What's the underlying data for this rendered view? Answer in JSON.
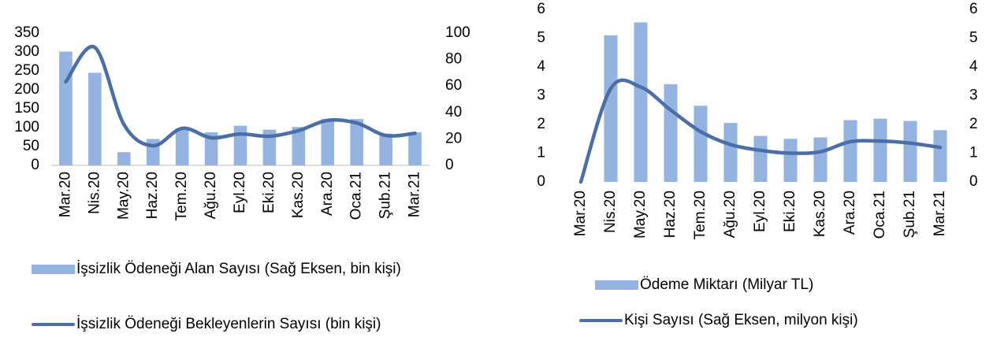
{
  "chart_data": [
    {
      "type": "bar-line",
      "categories": [
        "Mar.20",
        "Nis.20",
        "May.20",
        "Haz.20",
        "Tem.20",
        "Ağu.20",
        "Eyl.20",
        "Eki.20",
        "Kas.20",
        "Ara.20",
        "Oca.21",
        "Şub.21",
        "Mar.21"
      ],
      "series": [
        {
          "name": "İşsizlik Ödeneği Alan Sayısı (Sağ Eksen, bin kişi)",
          "type": "bar",
          "axis": "y2",
          "color": "#95b3e0",
          "values": [
            86,
            70,
            10,
            20,
            28,
            25,
            30,
            27,
            29,
            35,
            35,
            24,
            25
          ]
        },
        {
          "name": "İşsizlik Ödeneği Bekleyenlerin Sayısı (bin kişi)",
          "type": "line",
          "axis": "y",
          "color": "#4a6fa8",
          "values": [
            221,
            312,
            108,
            52,
            98,
            73,
            83,
            77,
            92,
            119,
            112,
            79,
            85
          ]
        }
      ],
      "ylim": [
        0,
        350
      ],
      "yticks": [
        0,
        50,
        100,
        150,
        200,
        250,
        300,
        350
      ],
      "y2lim": [
        0,
        100
      ],
      "y2ticks": [
        0,
        20,
        40,
        60,
        80,
        100
      ],
      "legend": "bottom"
    },
    {
      "type": "bar-line",
      "categories": [
        "Mar.20",
        "Nis.20",
        "May.20",
        "Haz.20",
        "Tem.20",
        "Ağu.20",
        "Eyl.20",
        "Eki.20",
        "Kas.20",
        "Ara.20",
        "Oca.21",
        "Şub.21",
        "Mar.21"
      ],
      "series": [
        {
          "name": "Ödeme Miktarı (Milyar TL)",
          "type": "bar",
          "axis": "y",
          "color": "#95b3e0",
          "values": [
            0,
            5.1,
            5.55,
            3.4,
            2.65,
            2.05,
            1.6,
            1.5,
            1.55,
            2.15,
            2.2,
            2.12,
            1.8
          ]
        },
        {
          "name": "Kişi Sayısı (Sağ Eksen, milyon kişi)",
          "type": "line",
          "axis": "y2",
          "color": "#4a6fa8",
          "values": [
            0,
            3.25,
            3.3,
            2.5,
            1.75,
            1.3,
            1.1,
            1.0,
            1.05,
            1.4,
            1.42,
            1.35,
            1.2
          ]
        }
      ],
      "ylim": [
        0,
        6
      ],
      "yticks": [
        0,
        1,
        2,
        3,
        4,
        5,
        6
      ],
      "y2lim": [
        0,
        6
      ],
      "y2ticks": [
        0,
        1,
        2,
        3,
        4,
        5,
        6
      ],
      "legend": "bottom"
    }
  ]
}
